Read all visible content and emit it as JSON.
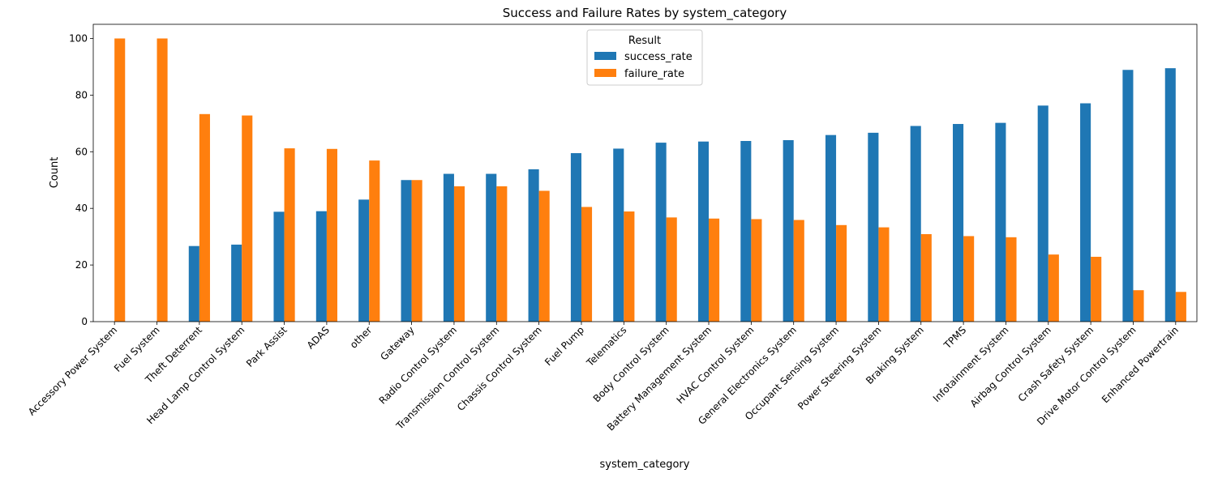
{
  "chart_data": {
    "type": "bar",
    "title": "Success and Failure Rates by system_category",
    "xlabel": "system_category",
    "ylabel": "Count",
    "ylim": [
      0,
      105
    ],
    "yticks": [
      0,
      20,
      40,
      60,
      80,
      100
    ],
    "grid": false,
    "legend": {
      "title": "Result",
      "placement": "top-center"
    },
    "categories": [
      "Accessory Power System",
      "Fuel System",
      "Theft Deterrent",
      "Head Lamp Control System",
      "Park Assist",
      "ADAS",
      "other",
      "Gateway",
      "Radio Control System",
      "Transmission Control System",
      "Chassis Control System",
      "Fuel Pump",
      "Telematics",
      "Body Control System",
      "Battery Management System",
      "HVAC Control System",
      "General Electronics System",
      "Occupant Sensing System",
      "Power Steering System",
      "Braking System",
      "TPMS",
      "Infotainment System",
      "Airbag Control System",
      "Crash Safety System",
      "Drive Motor Control System",
      "Enhanced Powertrain"
    ],
    "series": [
      {
        "name": "success_rate",
        "color": "#1f77b4",
        "values": [
          0,
          0,
          26.7,
          27.2,
          38.8,
          39.0,
          43.1,
          50.0,
          52.2,
          52.2,
          53.8,
          59.5,
          61.1,
          63.2,
          63.6,
          63.8,
          64.1,
          65.9,
          66.7,
          69.1,
          69.8,
          70.2,
          76.3,
          77.1,
          88.9,
          89.5
        ]
      },
      {
        "name": "failure_rate",
        "color": "#ff7f0e",
        "values": [
          100,
          100,
          73.3,
          72.8,
          61.2,
          61.0,
          56.9,
          50.0,
          47.8,
          47.8,
          46.2,
          40.5,
          38.9,
          36.8,
          36.4,
          36.2,
          35.9,
          34.1,
          33.3,
          30.9,
          30.2,
          29.8,
          23.7,
          22.9,
          11.1,
          10.5
        ]
      }
    ]
  }
}
